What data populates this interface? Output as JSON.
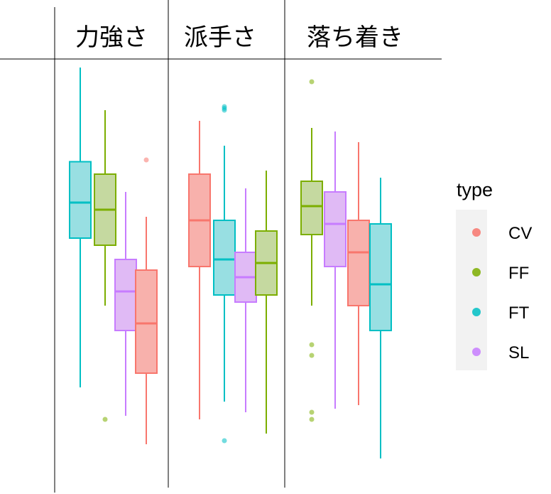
{
  "chart_data": {
    "type": "boxplot",
    "panels": [
      {
        "title": "力強さ",
        "boxes": [
          {
            "series": "FT",
            "min": 0.0,
            "q1": 0.42,
            "median": 0.52,
            "q3": 0.635,
            "max": 0.9,
            "outliers": []
          },
          {
            "series": "FF",
            "min": 0.23,
            "q1": 0.4,
            "median": 0.5,
            "q3": 0.6,
            "max": 0.78,
            "outliers": [
              -0.09
            ]
          },
          {
            "series": "SL",
            "min": -0.08,
            "q1": 0.16,
            "median": 0.27,
            "q3": 0.36,
            "max": 0.55,
            "outliers": []
          },
          {
            "series": "CV",
            "min": -0.16,
            "q1": 0.04,
            "median": 0.18,
            "q3": 0.33,
            "max": 0.48,
            "outliers": [
              0.64
            ]
          }
        ]
      },
      {
        "title": "派手さ",
        "boxes": [
          {
            "series": "CV",
            "min": -0.09,
            "q1": 0.34,
            "median": 0.47,
            "q3": 0.6,
            "max": 0.75,
            "outliers": []
          },
          {
            "series": "FT",
            "min": -0.04,
            "q1": 0.26,
            "median": 0.36,
            "q3": 0.47,
            "max": 0.68,
            "outliers": [
              0.79,
              0.785,
              0.78,
              -0.15
            ]
          },
          {
            "series": "SL",
            "min": -0.07,
            "q1": 0.24,
            "median": 0.31,
            "q3": 0.38,
            "max": 0.56,
            "outliers": []
          },
          {
            "series": "FF",
            "min": -0.13,
            "q1": 0.26,
            "median": 0.35,
            "q3": 0.44,
            "max": 0.61,
            "outliers": []
          }
        ]
      },
      {
        "title": "落ち着き",
        "boxes": [
          {
            "series": "FF",
            "min": 0.23,
            "q1": 0.43,
            "median": 0.51,
            "q3": 0.58,
            "max": 0.73,
            "outliers": [
              0.86,
              0.12,
              0.09,
              -0.07,
              -0.09
            ]
          },
          {
            "series": "SL",
            "min": -0.06,
            "q1": 0.34,
            "median": 0.46,
            "q3": 0.55,
            "max": 0.72,
            "outliers": []
          },
          {
            "series": "CV",
            "min": -0.05,
            "q1": 0.23,
            "median": 0.38,
            "q3": 0.47,
            "max": 0.69,
            "outliers": []
          },
          {
            "series": "FT",
            "min": -0.2,
            "q1": 0.16,
            "median": 0.29,
            "q3": 0.46,
            "max": 0.59,
            "outliers": []
          }
        ]
      }
    ],
    "legend": {
      "title": "type",
      "placement": "right",
      "entries": [
        "CV",
        "FF",
        "FT",
        "SL"
      ]
    },
    "colors": {
      "CV": {
        "line": "#F8766D",
        "fill": "#F8B1AC"
      },
      "FF": {
        "line": "#7CAE00",
        "fill": "#C5D9A0"
      },
      "FT": {
        "line": "#00BFC4",
        "fill": "#98DFE2"
      },
      "SL": {
        "line": "#C77CFF",
        "fill": "#E0BAF5"
      }
    },
    "grid": false
  }
}
